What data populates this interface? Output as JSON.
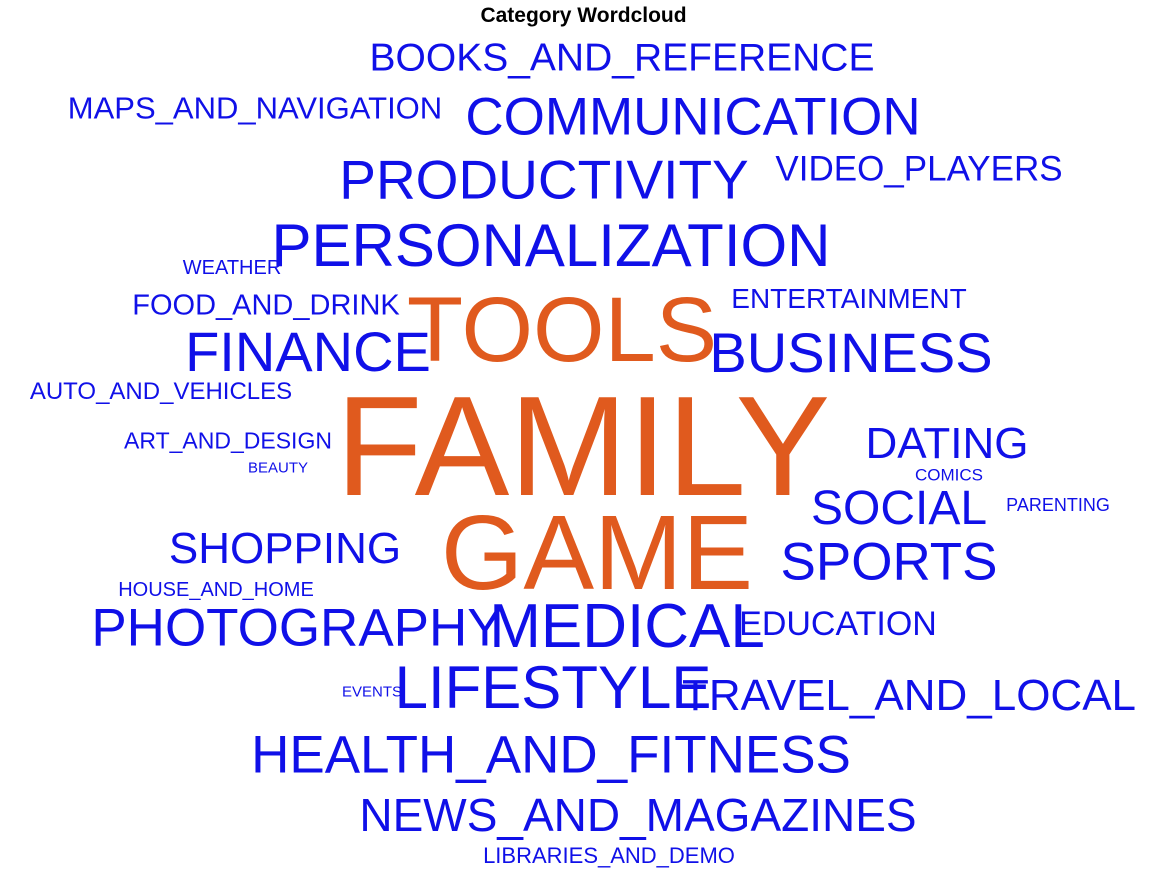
{
  "chart_data": {
    "type": "wordcloud",
    "title": "Category Wordcloud",
    "colors": {
      "highlight": "#e05a1e",
      "default": "#1010e8"
    },
    "words": [
      {
        "text": "FAMILY",
        "weight": 100,
        "highlight": true
      },
      {
        "text": "GAME",
        "weight": 75,
        "highlight": true
      },
      {
        "text": "TOOLS",
        "weight": 65,
        "highlight": true
      },
      {
        "text": "MEDICAL",
        "weight": 45
      },
      {
        "text": "PERSONALIZATION",
        "weight": 44
      },
      {
        "text": "LIFESTYLE",
        "weight": 44
      },
      {
        "text": "FINANCE",
        "weight": 42
      },
      {
        "text": "BUSINESS",
        "weight": 42
      },
      {
        "text": "PRODUCTIVITY",
        "weight": 41
      },
      {
        "text": "COMMUNICATION",
        "weight": 40
      },
      {
        "text": "SPORTS",
        "weight": 40
      },
      {
        "text": "PHOTOGRAPHY",
        "weight": 40
      },
      {
        "text": "HEALTH_AND_FITNESS",
        "weight": 40
      },
      {
        "text": "SOCIAL",
        "weight": 37
      },
      {
        "text": "NEWS_AND_MAGAZINES",
        "weight": 36
      },
      {
        "text": "DATING",
        "weight": 35
      },
      {
        "text": "SHOPPING",
        "weight": 35
      },
      {
        "text": "TRAVEL_AND_LOCAL",
        "weight": 34
      },
      {
        "text": "BOOKS_AND_REFERENCE",
        "weight": 31
      },
      {
        "text": "VIDEO_PLAYERS",
        "weight": 28
      },
      {
        "text": "EDUCATION",
        "weight": 27
      },
      {
        "text": "MAPS_AND_NAVIGATION",
        "weight": 25
      },
      {
        "text": "FOOD_AND_DRINK",
        "weight": 24
      },
      {
        "text": "ENTERTAINMENT",
        "weight": 23
      },
      {
        "text": "AUTO_AND_VEHICLES",
        "weight": 20
      },
      {
        "text": "ART_AND_DESIGN",
        "weight": 19
      },
      {
        "text": "LIBRARIES_AND_DEMO",
        "weight": 18
      },
      {
        "text": "WEATHER",
        "weight": 17
      },
      {
        "text": "HOUSE_AND_HOME",
        "weight": 17
      },
      {
        "text": "PARENTING",
        "weight": 15
      },
      {
        "text": "COMICS",
        "weight": 15
      },
      {
        "text": "EVENTS",
        "weight": 13
      },
      {
        "text": "BEAUTY",
        "weight": 13
      }
    ]
  }
}
